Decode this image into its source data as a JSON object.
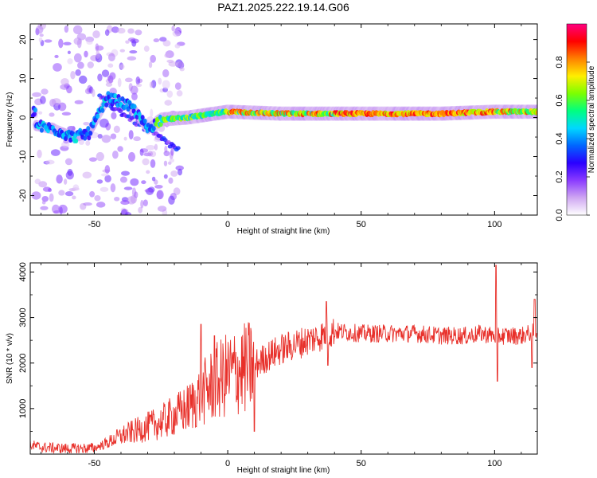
{
  "title": "PAZ1.2025.222.19.14.G06",
  "chart_data": [
    {
      "type": "heatmap",
      "xlabel": "Height of straight line (km)",
      "ylabel": "Frequency (Hz)",
      "xlim": [
        -74,
        116
      ],
      "ylim": [
        -25,
        24
      ],
      "xticks": [
        -50,
        0,
        50,
        100
      ],
      "yticks": [
        -20,
        -10,
        0,
        10,
        20
      ],
      "colorbar": {
        "label": "Normalized spectral amplitude",
        "range": [
          0,
          1
        ],
        "ticks": [
          0.0,
          0.2,
          0.4,
          0.6,
          0.8
        ],
        "colors": [
          "#ffffff",
          "#cfa6f2",
          "#8a3bff",
          "#2a00ff",
          "#0066ff",
          "#00d8ff",
          "#00ff80",
          "#7cff00",
          "#ffee00",
          "#ff8000",
          "#ff0000",
          "#ff0080"
        ]
      },
      "ridge": [
        {
          "x": -72,
          "f": -2
        },
        {
          "x": -65,
          "f": -3
        },
        {
          "x": -58,
          "f": -5
        },
        {
          "x": -52,
          "f": -4
        },
        {
          "x": -45,
          "f": 5
        },
        {
          "x": -40,
          "f": 4
        },
        {
          "x": -35,
          "f": 2
        },
        {
          "x": -30,
          "f": -3
        },
        {
          "x": -25,
          "f": -0.5
        },
        {
          "x": -15,
          "f": 0
        },
        {
          "x": -5,
          "f": 1
        },
        {
          "x": 0,
          "f": 1.5
        },
        {
          "x": 20,
          "f": 1
        },
        {
          "x": 50,
          "f": 1
        },
        {
          "x": 80,
          "f": 1
        },
        {
          "x": 100,
          "f": 1.5
        },
        {
          "x": 115,
          "f": 1.5
        }
      ]
    },
    {
      "type": "line",
      "xlabel": "Height of straight line (km)",
      "ylabel": "SNR (10 * v/v)",
      "xlim": [
        -74,
        116
      ],
      "ylim": [
        0,
        4200
      ],
      "xticks": [
        -50,
        0,
        50,
        100
      ],
      "yticks": [
        1000,
        2000,
        3000,
        4000
      ],
      "color": "#e8302a",
      "trend": [
        {
          "x": -74,
          "y": 200
        },
        {
          "x": -70,
          "y": 150
        },
        {
          "x": -60,
          "y": 120
        },
        {
          "x": -50,
          "y": 130
        },
        {
          "x": -45,
          "y": 250
        },
        {
          "x": -40,
          "y": 400
        },
        {
          "x": -35,
          "y": 500
        },
        {
          "x": -30,
          "y": 600
        },
        {
          "x": -25,
          "y": 700
        },
        {
          "x": -20,
          "y": 850
        },
        {
          "x": -15,
          "y": 1000
        },
        {
          "x": -10,
          "y": 1300
        },
        {
          "x": -5,
          "y": 1550
        },
        {
          "x": 0,
          "y": 1750
        },
        {
          "x": 5,
          "y": 1850
        },
        {
          "x": 10,
          "y": 1950
        },
        {
          "x": 15,
          "y": 2150
        },
        {
          "x": 20,
          "y": 2300
        },
        {
          "x": 25,
          "y": 2400
        },
        {
          "x": 30,
          "y": 2500
        },
        {
          "x": 35,
          "y": 2600
        },
        {
          "x": 40,
          "y": 2700
        },
        {
          "x": 50,
          "y": 2650
        },
        {
          "x": 60,
          "y": 2650
        },
        {
          "x": 70,
          "y": 2650
        },
        {
          "x": 80,
          "y": 2600
        },
        {
          "x": 90,
          "y": 2600
        },
        {
          "x": 95,
          "y": 2650
        },
        {
          "x": 100,
          "y": 2600
        },
        {
          "x": 105,
          "y": 2600
        },
        {
          "x": 110,
          "y": 2600
        },
        {
          "x": 116,
          "y": 2700
        }
      ],
      "spikes": [
        {
          "x": -10,
          "y": 2850
        },
        {
          "x": -5,
          "y": 2600
        },
        {
          "x": 10,
          "y": 500
        },
        {
          "x": 37,
          "y": 3350
        },
        {
          "x": 37.5,
          "y": 1950
        },
        {
          "x": 100.5,
          "y": 4150
        },
        {
          "x": 101,
          "y": 1600
        },
        {
          "x": 114,
          "y": 1900
        },
        {
          "x": 115,
          "y": 3400
        }
      ]
    }
  ]
}
